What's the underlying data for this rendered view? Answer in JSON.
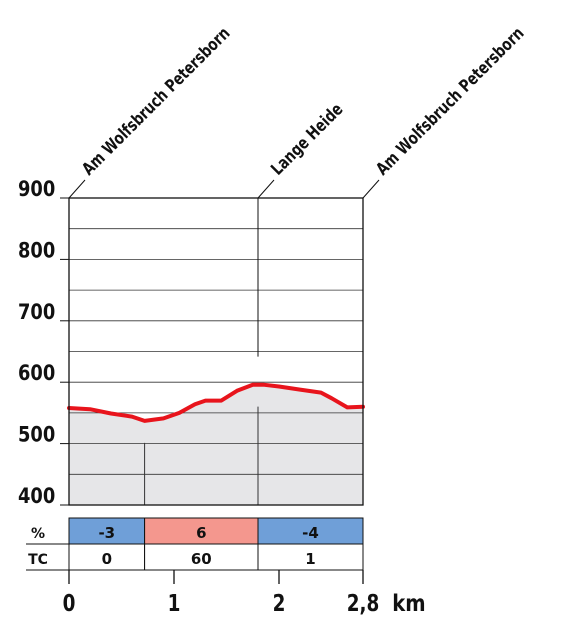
{
  "chart_data": {
    "type": "area",
    "x_unit": "km",
    "xlim": [
      0,
      2.8
    ],
    "ylim": [
      400,
      900
    ],
    "x_ticks": [
      "0",
      "1",
      "2",
      "2,8"
    ],
    "y_ticks": [
      "400",
      "500",
      "600",
      "700",
      "800",
      "900"
    ],
    "waypoints": [
      {
        "name": "Am Wolfsbruch Petersborn",
        "km": 0
      },
      {
        "name": "Lange Heide",
        "km": 1.8
      },
      {
        "name": "Am Wolfsbruch Petersborn",
        "km": 2.8
      }
    ],
    "profile": {
      "x": [
        0,
        0.2,
        0.4,
        0.6,
        0.72,
        0.9,
        1.05,
        1.2,
        1.3,
        1.45,
        1.6,
        1.75,
        1.85,
        2.0,
        2.2,
        2.4,
        2.5,
        2.65,
        2.8
      ],
      "y": [
        558,
        556,
        549,
        544,
        537,
        541,
        550,
        564,
        570,
        570,
        586,
        596,
        596,
        593,
        588,
        583,
        574,
        559,
        560
      ]
    },
    "segments": [
      {
        "from": 0,
        "to": 0.72,
        "grade": "-3",
        "tc": "0",
        "color": "#6f9fd8"
      },
      {
        "from": 0.72,
        "to": 1.8,
        "grade": "6",
        "tc": "60",
        "color": "#f4978e"
      },
      {
        "from": 1.8,
        "to": 2.8,
        "grade": "-4",
        "tc": "1",
        "color": "#6f9fd8"
      }
    ],
    "row_labels": {
      "grade": "%",
      "tc": "TC"
    },
    "line_color": "#e8141c",
    "fill_color": "#e6e6e8"
  }
}
